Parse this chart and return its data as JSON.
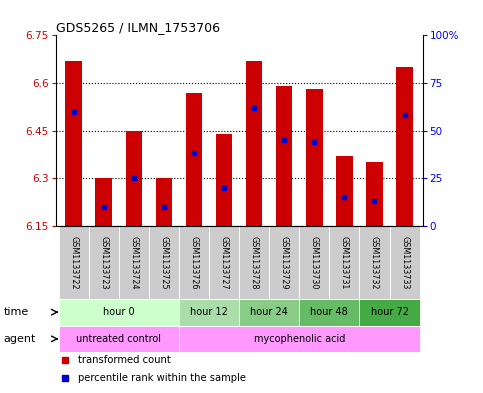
{
  "title": "GDS5265 / ILMN_1753706",
  "samples": [
    "GSM1133722",
    "GSM1133723",
    "GSM1133724",
    "GSM1133725",
    "GSM1133726",
    "GSM1133727",
    "GSM1133728",
    "GSM1133729",
    "GSM1133730",
    "GSM1133731",
    "GSM1133732",
    "GSM1133733"
  ],
  "bar_values": [
    6.67,
    6.3,
    6.45,
    6.3,
    6.57,
    6.44,
    6.67,
    6.59,
    6.58,
    6.37,
    6.35,
    6.65
  ],
  "percentile_values": [
    60,
    10,
    25,
    10,
    38,
    20,
    62,
    45,
    44,
    15,
    13,
    58
  ],
  "ymin": 6.15,
  "ymax": 6.75,
  "yticks": [
    6.15,
    6.3,
    6.45,
    6.6,
    6.75
  ],
  "ytick_labels": [
    "6.15",
    "6.3",
    "6.45",
    "6.6",
    "6.75"
  ],
  "right_yticks": [
    0,
    25,
    50,
    75,
    100
  ],
  "right_ytick_labels": [
    "0",
    "25",
    "50",
    "75",
    "100%"
  ],
  "bar_color": "#cc0000",
  "dot_color": "#0000cc",
  "time_colors": [
    "#ccffcc",
    "#aaddaa",
    "#88cc88",
    "#66bb66",
    "#44aa44"
  ],
  "time_groups": [
    {
      "label": "hour 0",
      "start": 0,
      "end": 3
    },
    {
      "label": "hour 12",
      "start": 4,
      "end": 5
    },
    {
      "label": "hour 24",
      "start": 6,
      "end": 7
    },
    {
      "label": "hour 48",
      "start": 8,
      "end": 9
    },
    {
      "label": "hour 72",
      "start": 10,
      "end": 11
    }
  ],
  "agent_groups": [
    {
      "label": "untreated control",
      "start": 0,
      "end": 3,
      "color": "#ff99ff"
    },
    {
      "label": "mycophenolic acid",
      "start": 4,
      "end": 11,
      "color": "#ff99ff"
    }
  ],
  "legend_items": [
    {
      "label": "transformed count",
      "color": "#cc0000"
    },
    {
      "label": "percentile rank within the sample",
      "color": "#0000cc"
    }
  ],
  "sample_bg_color": "#cccccc",
  "left_label_color": "#cc0000",
  "right_label_color": "#0000ff"
}
